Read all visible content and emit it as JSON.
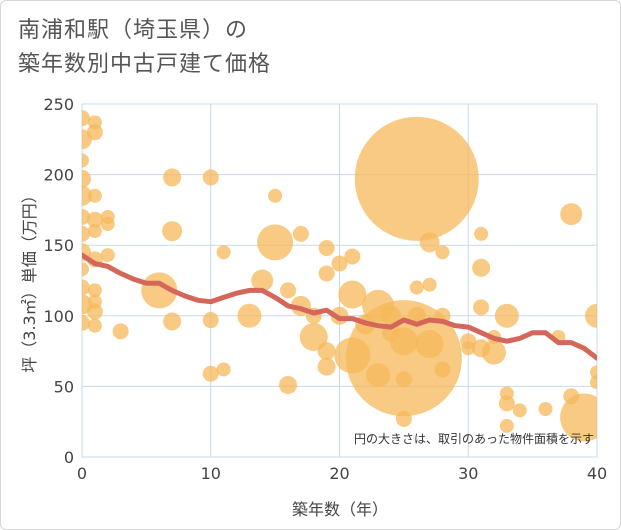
{
  "title_line1": "南浦和駅（埼玉県）の",
  "title_line2": "築年数別中古戸建て価格",
  "chart_data": {
    "type": "scatter",
    "title": "南浦和駅（埼玉県）の 築年数別中古戸建て価格",
    "xlabel": "築年数（年）",
    "ylabel": "坪（3.3㎡）単価（万円）",
    "xlim": [
      0,
      40
    ],
    "ylim": [
      0,
      250
    ],
    "xticks": [
      "0",
      "10",
      "20",
      "30",
      "40"
    ],
    "yticks": [
      "0",
      "50",
      "100",
      "150",
      "200",
      "250"
    ],
    "grid": true,
    "note": "円の大きさは、取引のあった物件面積を示す",
    "bubble_color": "#f5b85a",
    "line_color": "#d4665a",
    "points": [
      {
        "x": 0,
        "y": 240,
        "r": 8
      },
      {
        "x": 0,
        "y": 225,
        "r": 10
      },
      {
        "x": 0,
        "y": 210,
        "r": 7
      },
      {
        "x": 0,
        "y": 197,
        "r": 9
      },
      {
        "x": 0,
        "y": 185,
        "r": 10
      },
      {
        "x": 0,
        "y": 170,
        "r": 8
      },
      {
        "x": 0,
        "y": 158,
        "r": 8
      },
      {
        "x": 0,
        "y": 145,
        "r": 9
      },
      {
        "x": 0,
        "y": 133,
        "r": 7
      },
      {
        "x": 0,
        "y": 120,
        "r": 8
      },
      {
        "x": 0,
        "y": 108,
        "r": 10
      },
      {
        "x": 0,
        "y": 95,
        "r": 8
      },
      {
        "x": 1,
        "y": 237,
        "r": 7
      },
      {
        "x": 1,
        "y": 230,
        "r": 8
      },
      {
        "x": 1,
        "y": 185,
        "r": 7
      },
      {
        "x": 1,
        "y": 168,
        "r": 8
      },
      {
        "x": 1,
        "y": 160,
        "r": 7
      },
      {
        "x": 1,
        "y": 140,
        "r": 8
      },
      {
        "x": 1,
        "y": 118,
        "r": 7
      },
      {
        "x": 1,
        "y": 110,
        "r": 7
      },
      {
        "x": 1,
        "y": 103,
        "r": 8
      },
      {
        "x": 1,
        "y": 93,
        "r": 7
      },
      {
        "x": 2,
        "y": 170,
        "r": 7
      },
      {
        "x": 2,
        "y": 165,
        "r": 7
      },
      {
        "x": 2,
        "y": 143,
        "r": 7
      },
      {
        "x": 3,
        "y": 89,
        "r": 8
      },
      {
        "x": 6,
        "y": 118,
        "r": 18
      },
      {
        "x": 7,
        "y": 198,
        "r": 9
      },
      {
        "x": 7,
        "y": 160,
        "r": 10
      },
      {
        "x": 7,
        "y": 96,
        "r": 9
      },
      {
        "x": 10,
        "y": 198,
        "r": 8
      },
      {
        "x": 10,
        "y": 97,
        "r": 8
      },
      {
        "x": 10,
        "y": 59,
        "r": 8
      },
      {
        "x": 11,
        "y": 145,
        "r": 7
      },
      {
        "x": 11,
        "y": 62,
        "r": 7
      },
      {
        "x": 13,
        "y": 100,
        "r": 12
      },
      {
        "x": 14,
        "y": 125,
        "r": 11
      },
      {
        "x": 15,
        "y": 185,
        "r": 7
      },
      {
        "x": 15,
        "y": 152,
        "r": 18
      },
      {
        "x": 16,
        "y": 51,
        "r": 9
      },
      {
        "x": 16,
        "y": 118,
        "r": 8
      },
      {
        "x": 17,
        "y": 158,
        "r": 8
      },
      {
        "x": 17,
        "y": 107,
        "r": 10
      },
      {
        "x": 18,
        "y": 100,
        "r": 8
      },
      {
        "x": 18,
        "y": 85,
        "r": 14
      },
      {
        "x": 19,
        "y": 148,
        "r": 8
      },
      {
        "x": 19,
        "y": 130,
        "r": 8
      },
      {
        "x": 19,
        "y": 75,
        "r": 9
      },
      {
        "x": 19,
        "y": 64,
        "r": 9
      },
      {
        "x": 20,
        "y": 137,
        "r": 8
      },
      {
        "x": 20,
        "y": 100,
        "r": 9
      },
      {
        "x": 21,
        "y": 142,
        "r": 8
      },
      {
        "x": 21,
        "y": 115,
        "r": 14
      },
      {
        "x": 21,
        "y": 72,
        "r": 18
      },
      {
        "x": 22,
        "y": 94,
        "r": 10
      },
      {
        "x": 23,
        "y": 107,
        "r": 16
      },
      {
        "x": 23,
        "y": 58,
        "r": 12
      },
      {
        "x": 24,
        "y": 88,
        "r": 9
      },
      {
        "x": 24,
        "y": 100,
        "r": 10
      },
      {
        "x": 25,
        "y": 70,
        "r": 58
      },
      {
        "x": 25,
        "y": 55,
        "r": 8
      },
      {
        "x": 25,
        "y": 27,
        "r": 8
      },
      {
        "x": 25,
        "y": 82,
        "r": 14
      },
      {
        "x": 26,
        "y": 197,
        "r": 62
      },
      {
        "x": 26,
        "y": 120,
        "r": 7
      },
      {
        "x": 26,
        "y": 100,
        "r": 9
      },
      {
        "x": 27,
        "y": 152,
        "r": 10
      },
      {
        "x": 27,
        "y": 122,
        "r": 7
      },
      {
        "x": 27,
        "y": 80,
        "r": 14
      },
      {
        "x": 28,
        "y": 145,
        "r": 7
      },
      {
        "x": 28,
        "y": 62,
        "r": 8
      },
      {
        "x": 28,
        "y": 100,
        "r": 8
      },
      {
        "x": 30,
        "y": 82,
        "r": 8
      },
      {
        "x": 30,
        "y": 77,
        "r": 7
      },
      {
        "x": 31,
        "y": 158,
        "r": 7
      },
      {
        "x": 31,
        "y": 134,
        "r": 9
      },
      {
        "x": 31,
        "y": 106,
        "r": 8
      },
      {
        "x": 31,
        "y": 77,
        "r": 9
      },
      {
        "x": 32,
        "y": 74,
        "r": 12
      },
      {
        "x": 32,
        "y": 85,
        "r": 7
      },
      {
        "x": 33,
        "y": 100,
        "r": 12
      },
      {
        "x": 33,
        "y": 45,
        "r": 7
      },
      {
        "x": 33,
        "y": 38,
        "r": 8
      },
      {
        "x": 33,
        "y": 22,
        "r": 7
      },
      {
        "x": 34,
        "y": 33,
        "r": 7
      },
      {
        "x": 36,
        "y": 34,
        "r": 7
      },
      {
        "x": 37,
        "y": 85,
        "r": 7
      },
      {
        "x": 38,
        "y": 172,
        "r": 11
      },
      {
        "x": 38,
        "y": 43,
        "r": 8
      },
      {
        "x": 39,
        "y": 28,
        "r": 24
      },
      {
        "x": 40,
        "y": 100,
        "r": 12
      },
      {
        "x": 40,
        "y": 60,
        "r": 7
      },
      {
        "x": 40,
        "y": 53,
        "r": 7
      }
    ],
    "trend": {
      "x": [
        0,
        1,
        2,
        3,
        4,
        5,
        6,
        7,
        8,
        9,
        10,
        11,
        12,
        13,
        14,
        15,
        16,
        17,
        18,
        19,
        20,
        21,
        22,
        23,
        24,
        25,
        26,
        27,
        28,
        29,
        30,
        31,
        32,
        33,
        34,
        35,
        36,
        37,
        38,
        39,
        40
      ],
      "y": [
        143,
        137,
        135,
        130,
        126,
        123,
        123,
        118,
        114,
        111,
        110,
        113,
        116,
        118,
        118,
        113,
        107,
        105,
        102,
        104,
        98,
        98,
        95,
        93,
        92,
        97,
        94,
        97,
        96,
        93,
        92,
        88,
        84,
        82,
        84,
        88,
        88,
        81,
        81,
        77,
        70
      ]
    }
  }
}
